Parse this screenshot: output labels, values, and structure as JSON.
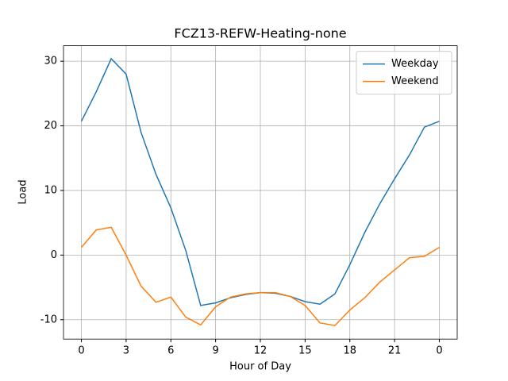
{
  "chart_data": {
    "type": "line",
    "title": "FCZ13-REFW-Heating-none",
    "x_label": "Hour of Day",
    "y_label": "Load",
    "x": [
      0,
      1,
      2,
      3,
      4,
      5,
      6,
      7,
      8,
      9,
      10,
      11,
      12,
      13,
      14,
      15,
      16,
      17,
      18,
      19,
      20,
      21,
      22,
      23,
      24
    ],
    "series": [
      {
        "name": "Weekday",
        "color": "#1f77b4",
        "values": [
          20.7,
          25.3,
          30.4,
          28.0,
          19.0,
          12.5,
          7.3,
          0.7,
          -7.8,
          -7.4,
          -6.6,
          -6.1,
          -5.8,
          -5.9,
          -6.4,
          -7.2,
          -7.6,
          -6.0,
          -1.5,
          3.5,
          7.9,
          11.8,
          15.5,
          19.8,
          20.7
        ]
      },
      {
        "name": "Weekend",
        "color": "#ff7f0e",
        "values": [
          1.2,
          3.9,
          4.3,
          0.0,
          -4.8,
          -7.3,
          -6.5,
          -9.6,
          -10.8,
          -8.0,
          -6.5,
          -6.0,
          -5.8,
          -5.8,
          -6.4,
          -7.8,
          -10.5,
          -10.9,
          -8.5,
          -6.6,
          -4.2,
          -2.3,
          -0.4,
          -0.2,
          1.2
        ]
      }
    ],
    "xlim": [
      -1.2,
      25.2
    ],
    "xticks": [
      0,
      3,
      6,
      9,
      12,
      15,
      18,
      21,
      {
        "value": 24,
        "label": "0"
      }
    ],
    "ylim": [
      -13,
      32.4
    ],
    "yticks": [
      -10,
      0,
      10,
      20,
      30
    ],
    "grid": true,
    "legend": "upper right"
  }
}
